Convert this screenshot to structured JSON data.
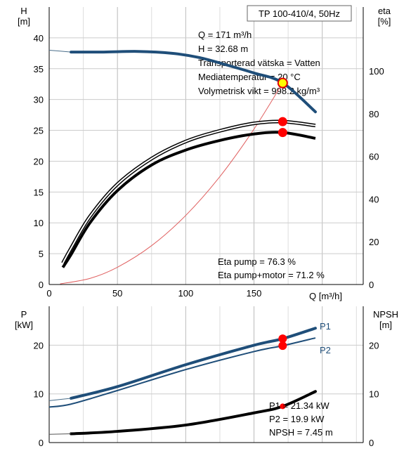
{
  "chart_data": [
    {
      "type": "line",
      "title": "TP 100-410/4, 50Hz",
      "x_axis": {
        "label": "Q [m³/h]",
        "range": [
          0,
          230
        ],
        "ticks": [
          0,
          50,
          100,
          150
        ]
      },
      "left_axis": {
        "label_top": "H",
        "label_unit": "[m]",
        "range": [
          0,
          45
        ],
        "ticks": [
          0,
          5,
          10,
          15,
          20,
          25,
          30,
          35,
          40
        ]
      },
      "right_axis": {
        "label_top": "eta",
        "label_unit": "[%]",
        "range": [
          0,
          130
        ],
        "ticks": [
          0,
          20,
          40,
          60,
          80,
          100
        ]
      },
      "grid": true,
      "info_box": [
        "Q = 171 m³/h",
        "H = 32.68 m",
        "Transporterad vätska = Vatten",
        "Mediatemperatur = 20 °C",
        "Volymetrisk vikt = 998.2 kg/m³"
      ],
      "efficiency_text": [
        "Eta pump = 76.3 %",
        "Eta pump+motor = 71.2 %"
      ],
      "series": [
        {
          "axis": "left",
          "color": "#1f4e79",
          "x": [
            8,
            16,
            40,
            65,
            90,
            110,
            130,
            150,
            171,
            195
          ],
          "y": [
            37.9,
            37.7,
            37.7,
            37.8,
            37.5,
            36.8,
            35.6,
            34.3,
            32.7,
            28.0
          ]
        },
        {
          "axis": "right",
          "color": "#000000",
          "x": [
            10,
            16,
            30,
            50,
            75,
            100,
            125,
            150,
            171,
            195
          ],
          "y": [
            10,
            17,
            32,
            47,
            59,
            67,
            72,
            75.5,
            76.3,
            74.5
          ]
        },
        {
          "axis": "right",
          "color": "#000000",
          "x": [
            10,
            16,
            30,
            50,
            75,
            100,
            125,
            150,
            171,
            195
          ],
          "y": [
            8,
            14,
            29,
            44,
            56,
            63,
            67.5,
            70.5,
            71.2,
            68.5
          ]
        },
        {
          "axis": "left",
          "color": "#e06060",
          "x": [
            8,
            30,
            50,
            75,
            100,
            125,
            150,
            171
          ],
          "y": [
            0.1,
            1.0,
            2.8,
            6.3,
            11.2,
            17.5,
            25.2,
            32.7
          ]
        }
      ],
      "operating_point": {
        "x": 171,
        "y": 32.68
      },
      "eta_points": [
        76.3,
        71.2
      ]
    },
    {
      "type": "line",
      "x_axis": {
        "range": [
          0,
          230
        ],
        "ticks": []
      },
      "left_axis": {
        "label_top": "P",
        "label_unit": "[kW]",
        "range": [
          0,
          28
        ],
        "ticks": [
          0,
          10,
          20
        ]
      },
      "right_axis": {
        "label_top": "NPSH",
        "label_unit": "[m]",
        "range": [
          0,
          28
        ],
        "ticks": [
          0,
          10,
          20
        ]
      },
      "grid": true,
      "info_box": [
        "P1 = 21.34 kW",
        "P2 = 19.9 kW",
        "NPSH = 7.45 m"
      ],
      "series": [
        {
          "name": "P1",
          "axis": "left",
          "color": "#1f4e79",
          "x": [
            0,
            16,
            50,
            100,
            150,
            171,
            195
          ],
          "y": [
            8.6,
            9.1,
            11.5,
            16.0,
            20.0,
            21.34,
            23.5
          ]
        },
        {
          "name": "P2",
          "axis": "left",
          "color": "#1f4e79",
          "x": [
            0,
            16,
            50,
            100,
            150,
            171,
            195
          ],
          "y": [
            7.3,
            7.9,
            10.7,
            15.0,
            18.7,
            19.9,
            21.5
          ]
        },
        {
          "axis": "right",
          "color": "#000000",
          "x": [
            0,
            16,
            50,
            100,
            150,
            171,
            195
          ],
          "y": [
            1.7,
            1.8,
            2.3,
            3.6,
            6.1,
            7.45,
            10.5
          ]
        }
      ],
      "points": [
        21.34,
        19.9,
        7.45
      ]
    }
  ]
}
